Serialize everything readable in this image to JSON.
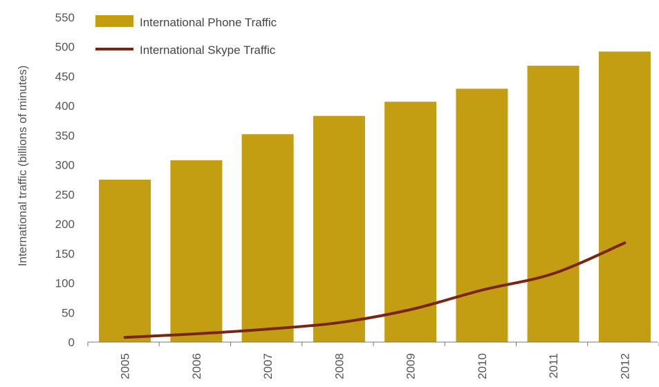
{
  "chart_data": {
    "type": "bar",
    "categories": [
      "2005",
      "2006",
      "2007",
      "2008",
      "2009",
      "2010",
      "2011",
      "2012"
    ],
    "series": [
      {
        "name": "International Phone Traffic",
        "type": "bar",
        "values": [
          275,
          308,
          352,
          383,
          407,
          429,
          468,
          492
        ]
      },
      {
        "name": "International Skype Traffic",
        "type": "line",
        "values": [
          8,
          14,
          22,
          33,
          55,
          88,
          116,
          168
        ]
      }
    ],
    "xlabel": "",
    "ylabel": "International traffic (billions of minutes)",
    "ylim": [
      0,
      550
    ],
    "yticks": [
      "0",
      "50",
      "100",
      "150",
      "200",
      "250",
      "300",
      "350",
      "400",
      "450",
      "500",
      "550"
    ],
    "grid": false,
    "legend_position": "top-left",
    "colors": {
      "bar": "#C39D12",
      "line": "#7A2512",
      "axis": "#777777",
      "text": "#555555"
    }
  }
}
